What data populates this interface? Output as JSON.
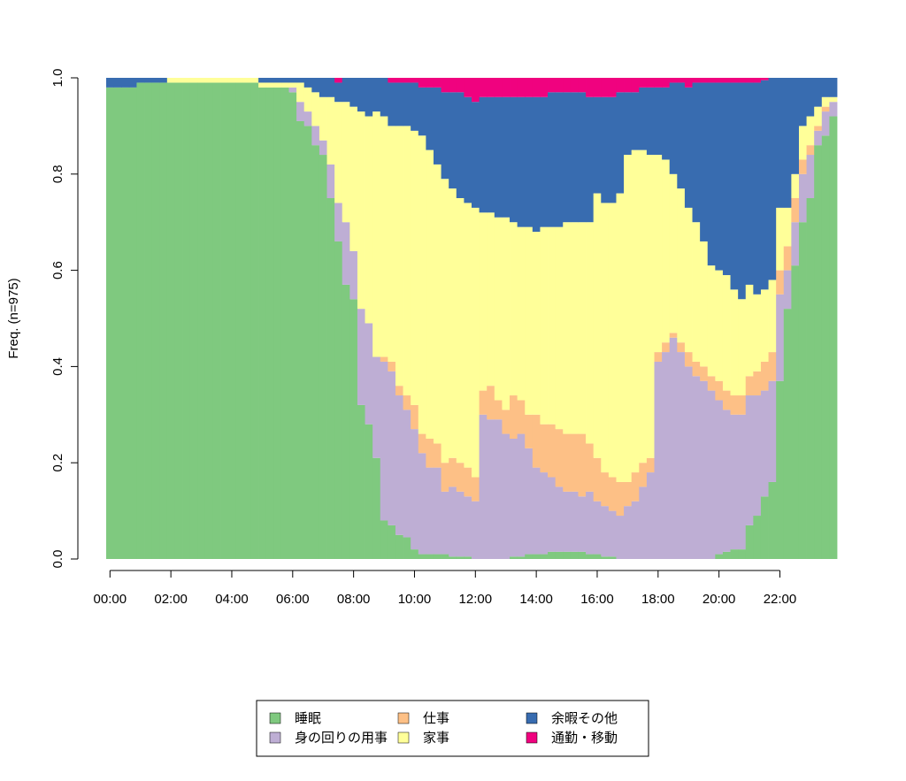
{
  "chart_data": {
    "type": "stacked_bar",
    "y_label": "Freq. (n=975)",
    "categories": [
      "00:00",
      null,
      null,
      null,
      null,
      null,
      null,
      null,
      "02:00",
      null,
      null,
      null,
      null,
      null,
      null,
      null,
      "04:00",
      null,
      null,
      null,
      null,
      null,
      null,
      null,
      "06:00",
      null,
      null,
      null,
      null,
      null,
      null,
      null,
      "08:00",
      null,
      null,
      null,
      null,
      null,
      null,
      null,
      "10:00",
      null,
      null,
      null,
      null,
      null,
      null,
      null,
      "12:00",
      null,
      null,
      null,
      null,
      null,
      null,
      null,
      "14:00",
      null,
      null,
      null,
      null,
      null,
      null,
      null,
      "16:00",
      null,
      null,
      null,
      null,
      null,
      null,
      null,
      "18:00",
      null,
      null,
      null,
      null,
      null,
      null,
      null,
      "20:00",
      null,
      null,
      null,
      null,
      null,
      null,
      null,
      "22:00",
      null,
      null,
      null,
      null,
      null,
      null,
      null
    ],
    "ylim": [
      0,
      1
    ],
    "yticks": [
      {
        "value": 0,
        "label": "0.0"
      },
      0.2,
      0.4,
      0.6,
      0.8,
      {
        "value": 1,
        "label": "1.0"
      }
    ],
    "legend": "bottom",
    "series": [
      {
        "name": "睡眠",
        "color": "#7fc97f",
        "values": [
          0.98,
          0.98,
          0.98,
          0.98,
          0.99,
          0.99,
          0.99,
          0.99,
          0.99,
          0.99,
          0.99,
          0.99,
          0.99,
          0.99,
          0.99,
          0.99,
          0.99,
          0.99,
          0.99,
          0.99,
          0.98,
          0.98,
          0.98,
          0.98,
          0.97,
          0.91,
          0.9,
          0.86,
          0.84,
          0.75,
          0.66,
          0.57,
          0.54,
          0.32,
          0.28,
          0.21,
          0.08,
          0.07,
          0.05,
          0.045,
          0.02,
          0.01,
          0.01,
          0.01,
          0.01,
          0.005,
          0.005,
          0.005,
          0,
          0,
          0,
          0,
          0,
          0.005,
          0.005,
          0.01,
          0.01,
          0.01,
          0.015,
          0.015,
          0.015,
          0.015,
          0.015,
          0.01,
          0.01,
          0.005,
          0.005,
          0,
          0,
          0,
          0,
          0,
          0,
          0,
          0,
          0,
          0,
          0,
          0,
          0,
          0.01,
          0.015,
          0.02,
          0.02,
          0.07,
          0.09,
          0.13,
          0.16,
          0.37,
          0.52,
          0.61,
          0.7,
          0.75,
          0.86,
          0.88,
          0.92
        ]
      },
      {
        "name": "身の回りの用事",
        "color": "#beaed4",
        "values": [
          0,
          0,
          0,
          0,
          0,
          0,
          0,
          0,
          0,
          0,
          0,
          0,
          0,
          0,
          0,
          0,
          0,
          0,
          0,
          0,
          0,
          0,
          0,
          0,
          0.01,
          0.04,
          0.03,
          0.04,
          0.03,
          0.07,
          0.08,
          0.13,
          0.1,
          0.2,
          0.21,
          0.21,
          0.33,
          0.32,
          0.29,
          0.265,
          0.25,
          0.21,
          0.18,
          0.18,
          0.13,
          0.145,
          0.135,
          0.125,
          0.12,
          0.3,
          0.29,
          0.29,
          0.26,
          0.245,
          0.255,
          0.22,
          0.18,
          0.17,
          0.155,
          0.135,
          0.125,
          0.125,
          0.115,
          0.13,
          0.11,
          0.105,
          0.095,
          0.09,
          0.11,
          0.12,
          0.15,
          0.18,
          0.41,
          0.43,
          0.46,
          0.43,
          0.4,
          0.38,
          0.37,
          0.35,
          0.32,
          0.295,
          0.28,
          0.28,
          0.27,
          0.25,
          0.22,
          0.21,
          0.18,
          0.08,
          0.09,
          0.1,
          0.09,
          0.03,
          0.05,
          0.03
        ]
      },
      {
        "name": "仕事",
        "color": "#fdc086",
        "values": [
          0,
          0,
          0,
          0,
          0,
          0,
          0,
          0,
          0,
          0,
          0,
          0,
          0,
          0,
          0,
          0,
          0,
          0,
          0,
          0,
          0,
          0,
          0,
          0,
          0,
          0,
          0,
          0,
          0,
          0,
          0,
          0,
          0,
          0,
          0,
          0,
          0.01,
          0.02,
          0.02,
          0.03,
          0.05,
          0.04,
          0.06,
          0.05,
          0.06,
          0.06,
          0.06,
          0.06,
          0.05,
          0.05,
          0.07,
          0.04,
          0.05,
          0.09,
          0.07,
          0.07,
          0.11,
          0.1,
          0.11,
          0.12,
          0.12,
          0.12,
          0.13,
          0.1,
          0.09,
          0.07,
          0.07,
          0.07,
          0.05,
          0.06,
          0.05,
          0.03,
          0.02,
          0.02,
          0.01,
          0.02,
          0.03,
          0.03,
          0.03,
          0.03,
          0.04,
          0.04,
          0.04,
          0.04,
          0.04,
          0.05,
          0.06,
          0.06,
          0.05,
          0.05,
          0.05,
          0.03,
          0.02,
          0.01,
          0.01,
          0
        ]
      },
      {
        "name": "家事",
        "color": "#ffff99",
        "values": [
          0,
          0,
          0,
          0,
          0,
          0,
          0,
          0,
          0.01,
          0.01,
          0.01,
          0.01,
          0.01,
          0.01,
          0.01,
          0.01,
          0.01,
          0.01,
          0.01,
          0.01,
          0.01,
          0.01,
          0.01,
          0.01,
          0.01,
          0.04,
          0.05,
          0.07,
          0.09,
          0.14,
          0.21,
          0.25,
          0.3,
          0.41,
          0.43,
          0.51,
          0.5,
          0.49,
          0.54,
          0.56,
          0.57,
          0.62,
          0.6,
          0.58,
          0.59,
          0.56,
          0.55,
          0.55,
          0.56,
          0.37,
          0.36,
          0.38,
          0.4,
          0.36,
          0.36,
          0.39,
          0.38,
          0.41,
          0.41,
          0.42,
          0.44,
          0.44,
          0.44,
          0.46,
          0.55,
          0.56,
          0.57,
          0.6,
          0.68,
          0.67,
          0.65,
          0.63,
          0.41,
          0.38,
          0.33,
          0.32,
          0.3,
          0.29,
          0.26,
          0.23,
          0.23,
          0.24,
          0.22,
          0.2,
          0.19,
          0.16,
          0.15,
          0.15,
          0.13,
          0.08,
          0.05,
          0.07,
          0.06,
          0.04,
          0.02,
          0.01
        ]
      },
      {
        "name": "余暇その他",
        "color": "#386cb0",
        "values": [
          0.02,
          0.02,
          0.02,
          0.02,
          0.01,
          0.01,
          0.01,
          0.01,
          0,
          0,
          0,
          0,
          0,
          0,
          0,
          0,
          0,
          0,
          0,
          0,
          0.01,
          0.01,
          0.01,
          0.01,
          0.01,
          0.01,
          0.02,
          0.03,
          0.04,
          0.04,
          0.04,
          0.05,
          0.06,
          0.07,
          0.08,
          0.07,
          0.08,
          0.09,
          0.09,
          0.09,
          0.1,
          0.1,
          0.13,
          0.16,
          0.18,
          0.2,
          0.22,
          0.22,
          0.22,
          0.24,
          0.24,
          0.25,
          0.25,
          0.26,
          0.27,
          0.27,
          0.28,
          0.27,
          0.28,
          0.28,
          0.27,
          0.27,
          0.27,
          0.26,
          0.2,
          0.22,
          0.22,
          0.21,
          0.13,
          0.12,
          0.13,
          0.14,
          0.14,
          0.15,
          0.19,
          0.22,
          0.25,
          0.29,
          0.33,
          0.38,
          0.39,
          0.4,
          0.43,
          0.45,
          0.42,
          0.44,
          0.435,
          0.42,
          0.27,
          0.27,
          0.2,
          0.1,
          0.08,
          0.06,
          0.04,
          0.04
        ]
      },
      {
        "name": "通勤・移動",
        "color": "#f0027f",
        "values": [
          0,
          0,
          0,
          0,
          0,
          0,
          0,
          0,
          0,
          0,
          0,
          0,
          0,
          0,
          0,
          0,
          0,
          0,
          0,
          0,
          0,
          0,
          0,
          0,
          0,
          0,
          0,
          0,
          0,
          0,
          0.01,
          0,
          0,
          0,
          0,
          0,
          0,
          0.01,
          0.01,
          0.01,
          0.01,
          0.02,
          0.02,
          0.02,
          0.03,
          0.03,
          0.03,
          0.04,
          0.05,
          0.04,
          0.04,
          0.04,
          0.04,
          0.04,
          0.04,
          0.04,
          0.04,
          0.04,
          0.03,
          0.03,
          0.03,
          0.03,
          0.03,
          0.04,
          0.04,
          0.04,
          0.04,
          0.03,
          0.03,
          0.03,
          0.02,
          0.02,
          0.02,
          0.02,
          0.01,
          0.01,
          0.02,
          0.01,
          0.01,
          0.01,
          0.01,
          0.01,
          0.01,
          0.01,
          0.01,
          0.01,
          0.005,
          0,
          0,
          0,
          0,
          0,
          0,
          0,
          0,
          0
        ]
      }
    ]
  }
}
